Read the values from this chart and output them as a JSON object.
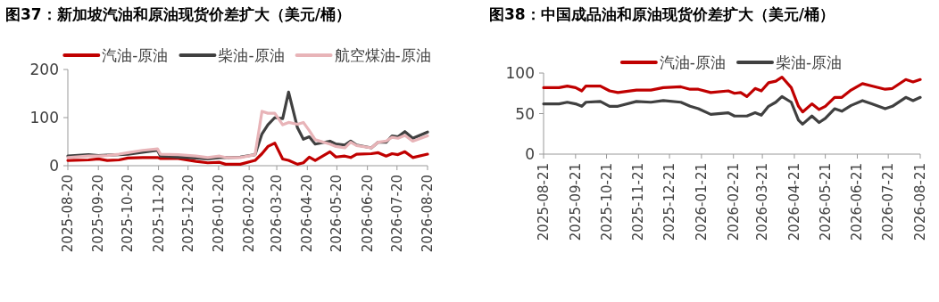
{
  "chart_data": [
    {
      "type": "line",
      "title": "图37：新加坡汽油和原油现货价差扩大（美元/桶）",
      "legend": "top",
      "grid": false,
      "x": [
        "2025-08-20",
        "2025-09-10",
        "2025-09-20",
        "2025-09-29",
        "2025-10-11",
        "2025-10-20",
        "2025-11-04",
        "2025-11-19",
        "2025-11-22",
        "2025-12-10",
        "2025-12-28",
        "2026-01-09",
        "2026-01-21",
        "2026-01-27",
        "2026-02-11",
        "2026-02-26",
        "2026-03-05",
        "2026-03-11",
        "2026-03-18",
        "2026-03-26",
        "2026-04-01",
        "2026-04-10",
        "2026-04-16",
        "2026-04-22",
        "2026-04-28",
        "2026-05-13",
        "2026-05-19",
        "2026-05-28",
        "2026-06-03",
        "2026-06-09",
        "2026-06-24",
        "2026-07-01",
        "2026-07-09",
        "2026-07-15",
        "2026-07-21",
        "2026-07-28",
        "2026-08-05",
        "2026-08-20"
      ],
      "series": [
        {
          "name": "汽油-原油",
          "color": "#c00000",
          "values": [
            11,
            12,
            14,
            11,
            12,
            16,
            17,
            17,
            15,
            15,
            9,
            6,
            7,
            3,
            3,
            11,
            25,
            40,
            47,
            14,
            11,
            3,
            6,
            18,
            11,
            29,
            18,
            20,
            17,
            24,
            25,
            27,
            20,
            25,
            23,
            29,
            17,
            24
          ]
        },
        {
          "name": "柴油-原油",
          "color": "#404040",
          "values": [
            20,
            23,
            21,
            22,
            23,
            24,
            28,
            32,
            20,
            18,
            16,
            14,
            17,
            17,
            18,
            23,
            66,
            85,
            100,
            98,
            153,
            79,
            55,
            60,
            45,
            51,
            45,
            43,
            51,
            43,
            37,
            49,
            49,
            62,
            60,
            71,
            57,
            70
          ]
        },
        {
          "name": "航空煤油-原油",
          "color": "#e8b4b8",
          "values": [
            17,
            20,
            20,
            21,
            24,
            27,
            32,
            35,
            24,
            23,
            20,
            17,
            20,
            17,
            17,
            23,
            113,
            109,
            109,
            85,
            90,
            86,
            90,
            73,
            54,
            45,
            40,
            37,
            49,
            42,
            37,
            49,
            51,
            59,
            57,
            63,
            51,
            62
          ]
        }
      ],
      "xlim": [
        "2025-08-20",
        "2026-08-20"
      ],
      "xticks": [
        "2025-08-20",
        "2025-09-20",
        "2025-10-20",
        "2025-11-20",
        "2025-12-20",
        "2026-01-20",
        "2026-02-20",
        "2026-03-20",
        "2026-04-20",
        "2026-05-20",
        "2026-06-20",
        "2026-07-20",
        "2026-08-20"
      ],
      "ylim": [
        0,
        200
      ],
      "yticks": [
        0,
        100,
        200
      ]
    },
    {
      "type": "line",
      "title": "图38：中国成品油和原油现货价差扩大（美元/桶）",
      "legend": "top",
      "grid": false,
      "x": [
        "2025-08-21",
        "2025-09-05",
        "2025-09-13",
        "2025-09-21",
        "2025-09-27",
        "2025-10-01",
        "2025-10-15",
        "2025-10-24",
        "2025-11-01",
        "2025-11-19",
        "2025-12-03",
        "2025-12-15",
        "2026-01-01",
        "2026-01-10",
        "2026-01-18",
        "2026-01-30",
        "2026-02-16",
        "2026-02-22",
        "2026-02-28",
        "2026-03-06",
        "2026-03-14",
        "2026-03-20",
        "2026-03-27",
        "2026-04-03",
        "2026-04-09",
        "2026-04-18",
        "2026-04-25",
        "2026-04-29",
        "2026-05-08",
        "2026-05-15",
        "2026-05-21",
        "2026-05-30",
        "2026-06-06",
        "2026-06-15",
        "2026-06-26",
        "2026-07-05",
        "2026-07-18",
        "2026-07-25",
        "2026-08-07",
        "2026-08-14",
        "2026-08-21"
      ],
      "series": [
        {
          "name": "汽油-原油",
          "color": "#c00000",
          "values": [
            82,
            82,
            84,
            82,
            78,
            84,
            84,
            78,
            76,
            79,
            79,
            82,
            83,
            80,
            80,
            76,
            78,
            75,
            76,
            71,
            81,
            78,
            88,
            90,
            95,
            82,
            59,
            52,
            62,
            55,
            59,
            70,
            70,
            79,
            87,
            84,
            80,
            81,
            92,
            89,
            92
          ]
        },
        {
          "name": "柴油-原油",
          "color": "#404040",
          "values": [
            62,
            62,
            64,
            62,
            59,
            64,
            65,
            59,
            59,
            65,
            64,
            66,
            64,
            59,
            56,
            49,
            51,
            47,
            47,
            47,
            51,
            48,
            59,
            64,
            71,
            64,
            42,
            37,
            47,
            39,
            44,
            56,
            53,
            60,
            66,
            62,
            56,
            59,
            70,
            66,
            70
          ]
        }
      ],
      "xlim": [
        "2025-08-21",
        "2026-08-21"
      ],
      "xticks": [
        "2025-08-21",
        "2025-09-21",
        "2025-10-21",
        "2025-11-21",
        "2025-12-21",
        "2026-01-21",
        "2026-02-21",
        "2026-03-21",
        "2026-04-21",
        "2026-05-21",
        "2026-06-21",
        "2026-07-21",
        "2026-08-21"
      ],
      "ylim": [
        0,
        100
      ],
      "yticks": [
        0,
        50,
        100
      ]
    }
  ]
}
